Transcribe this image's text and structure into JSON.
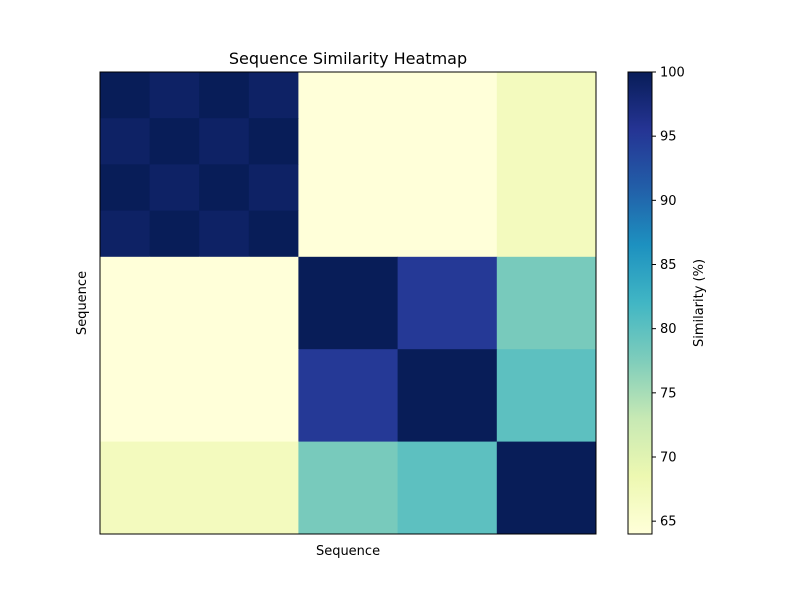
{
  "chart_data": {
    "type": "heatmap",
    "title": "Sequence Similarity Heatmap",
    "xlabel": "Sequence",
    "ylabel": "Sequence",
    "colorbar_label": "Similarity (%)",
    "colormap": "YlGnBu",
    "vmin": 64,
    "vmax": 100,
    "colorbar_ticks": [
      65,
      70,
      75,
      80,
      85,
      90,
      95,
      100
    ],
    "x_boundaries": [
      0,
      1,
      2,
      3,
      4,
      6,
      8,
      10
    ],
    "y_boundaries": [
      0,
      1,
      2,
      3,
      4,
      6,
      8,
      10
    ],
    "values": [
      [
        100,
        99,
        100,
        99,
        64,
        64,
        67
      ],
      [
        99,
        100,
        99,
        100,
        64,
        64,
        67
      ],
      [
        100,
        99,
        100,
        99,
        64,
        64,
        67
      ],
      [
        99,
        100,
        99,
        100,
        64,
        64,
        67
      ],
      [
        64,
        64,
        64,
        64,
        100,
        95,
        78
      ],
      [
        64,
        64,
        64,
        64,
        95,
        100,
        80
      ],
      [
        67,
        67,
        67,
        67,
        78,
        80,
        100
      ]
    ],
    "x_ticks_shown": false,
    "y_ticks_shown": false,
    "grid": false
  }
}
